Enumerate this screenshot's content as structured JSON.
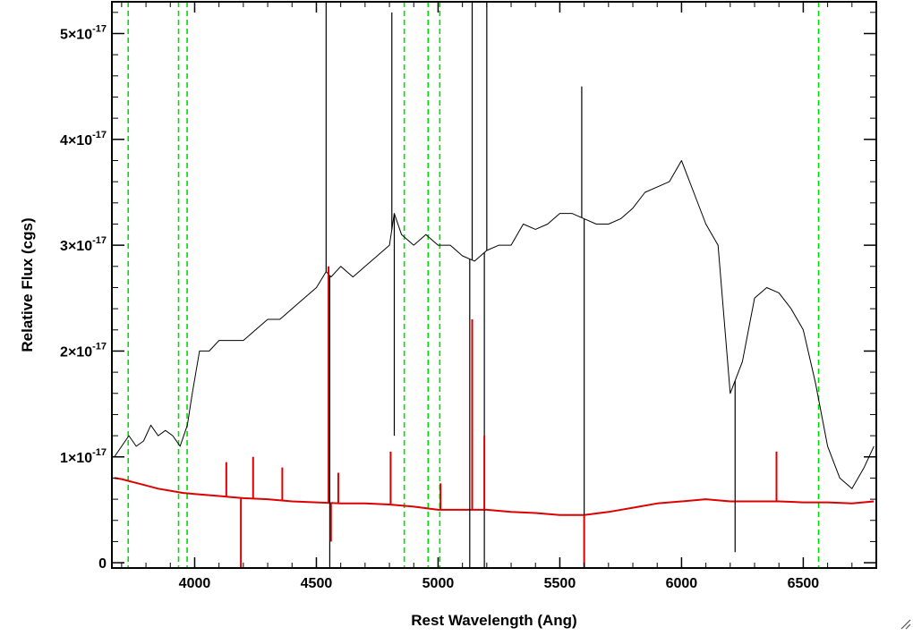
{
  "chart_data": {
    "type": "line",
    "title": "",
    "xlabel": "Rest Wavelength (Ang)",
    "ylabel": "Relative Flux (cgs)",
    "xlim": [
      3660,
      6800
    ],
    "ylim": [
      -0.05,
      5.3
    ],
    "y_scale_exponent": -17,
    "x_ticks": [
      4000,
      4500,
      5000,
      5500,
      6000,
      6500
    ],
    "x_tick_labels": [
      "4000",
      "4500",
      "5000",
      "5500",
      "6000",
      "6500"
    ],
    "y_ticks": [
      0,
      1,
      2,
      3,
      4,
      5
    ],
    "y_tick_labels": [
      {
        "mantissa": "0",
        "exponent": ""
      },
      {
        "mantissa": "1×10",
        "exponent": "-17"
      },
      {
        "mantissa": "2×10",
        "exponent": "-17"
      },
      {
        "mantissa": "3×10",
        "exponent": "-17"
      },
      {
        "mantissa": "4×10",
        "exponent": "-17"
      },
      {
        "mantissa": "5×10",
        "exponent": "-17"
      }
    ],
    "grid": false,
    "legend": "none",
    "colors": {
      "observed": "#000000",
      "model": "#dd0000",
      "lines": "#00dd00",
      "frame": "#000000"
    },
    "series": [
      {
        "color": "#000000",
        "x": [
          3670,
          3700,
          3730,
          3760,
          3790,
          3820,
          3850,
          3880,
          3910,
          3940,
          3970,
          3990,
          4020,
          4060,
          4100,
          4150,
          4200,
          4250,
          4300,
          4350,
          4400,
          4450,
          4500,
          4540,
          4560,
          4600,
          4650,
          4700,
          4750,
          4800,
          4820,
          4850,
          4900,
          4950,
          5000,
          5050,
          5100,
          5150,
          5200,
          5250,
          5300,
          5350,
          5400,
          5450,
          5500,
          5550,
          5600,
          5650,
          5700,
          5750,
          5800,
          5850,
          5900,
          5950,
          6000,
          6050,
          6100,
          6150,
          6200,
          6250,
          6300,
          6350,
          6400,
          6450,
          6500,
          6550,
          6600,
          6650,
          6700,
          6750,
          6790
        ],
        "y": [
          1.0,
          1.1,
          1.2,
          1.1,
          1.15,
          1.3,
          1.2,
          1.25,
          1.2,
          1.1,
          1.3,
          1.6,
          2.0,
          2.0,
          2.1,
          2.1,
          2.1,
          2.2,
          2.3,
          2.3,
          2.4,
          2.5,
          2.6,
          2.75,
          2.7,
          2.8,
          2.7,
          2.8,
          2.9,
          3.0,
          3.3,
          3.1,
          3.0,
          3.1,
          3.0,
          3.0,
          2.9,
          2.85,
          2.95,
          3.0,
          3.0,
          3.2,
          3.15,
          3.2,
          3.3,
          3.3,
          3.25,
          3.2,
          3.2,
          3.25,
          3.35,
          3.5,
          3.55,
          3.6,
          3.8,
          3.5,
          3.2,
          3.0,
          1.6,
          1.9,
          2.5,
          2.6,
          2.55,
          2.4,
          2.2,
          1.7,
          1.1,
          0.8,
          0.7,
          0.9,
          1.1
        ]
      },
      {
        "color": "#dd0000",
        "x": [
          3670,
          3700,
          3750,
          3800,
          3850,
          3900,
          3950,
          4000,
          4100,
          4200,
          4300,
          4400,
          4500,
          4600,
          4700,
          4800,
          4900,
          5000,
          5100,
          5200,
          5300,
          5400,
          5500,
          5600,
          5700,
          5800,
          5900,
          6000,
          6100,
          6200,
          6300,
          6400,
          6500,
          6600,
          6700,
          6790
        ],
        "y": [
          0.8,
          0.79,
          0.76,
          0.73,
          0.7,
          0.68,
          0.66,
          0.65,
          0.63,
          0.61,
          0.6,
          0.58,
          0.57,
          0.56,
          0.56,
          0.55,
          0.53,
          0.5,
          0.5,
          0.5,
          0.48,
          0.47,
          0.45,
          0.45,
          0.48,
          0.52,
          0.56,
          0.58,
          0.6,
          0.58,
          0.58,
          0.58,
          0.57,
          0.57,
          0.56,
          0.58
        ]
      }
    ],
    "spikes": [
      {
        "series": "observed",
        "x": 4540,
        "y": 5.3
      },
      {
        "series": "observed",
        "x": 4555,
        "y": -0.05
      },
      {
        "series": "observed",
        "x": 4810,
        "y": 5.2
      },
      {
        "series": "observed",
        "x": 4820,
        "y": 1.2
      },
      {
        "series": "observed",
        "x": 5130,
        "y": -0.05
      },
      {
        "series": "observed",
        "x": 5140,
        "y": 5.3
      },
      {
        "series": "observed",
        "x": 5190,
        "y": -0.05
      },
      {
        "series": "observed",
        "x": 5200,
        "y": 5.3
      },
      {
        "series": "observed",
        "x": 5590,
        "y": 4.5
      },
      {
        "series": "observed",
        "x": 5600,
        "y": -0.05
      },
      {
        "series": "observed",
        "x": 6220,
        "y": 0.1
      },
      {
        "series": "model",
        "x": 4190,
        "y": -0.05
      },
      {
        "series": "model",
        "x": 4550,
        "y": 2.8
      },
      {
        "series": "model",
        "x": 4560,
        "y": 0.2
      },
      {
        "series": "model",
        "x": 4805,
        "y": 1.05
      },
      {
        "series": "model",
        "x": 5140,
        "y": 2.3
      },
      {
        "series": "model",
        "x": 5190,
        "y": 1.2
      },
      {
        "series": "model",
        "x": 5600,
        "y": -0.05
      },
      {
        "series": "model",
        "x": 4130,
        "y": 0.95
      },
      {
        "series": "model",
        "x": 4240,
        "y": 1.0
      },
      {
        "series": "model",
        "x": 4360,
        "y": 0.9
      },
      {
        "series": "model",
        "x": 4590,
        "y": 0.85
      },
      {
        "series": "model",
        "x": 5010,
        "y": 0.75
      },
      {
        "series": "model",
        "x": 6390,
        "y": 1.05
      }
    ],
    "vertical_lines": {
      "color": "#00dd00",
      "style": "dashed",
      "x": [
        3727,
        3934,
        3969,
        4861,
        4959,
        5007,
        6563
      ]
    }
  }
}
